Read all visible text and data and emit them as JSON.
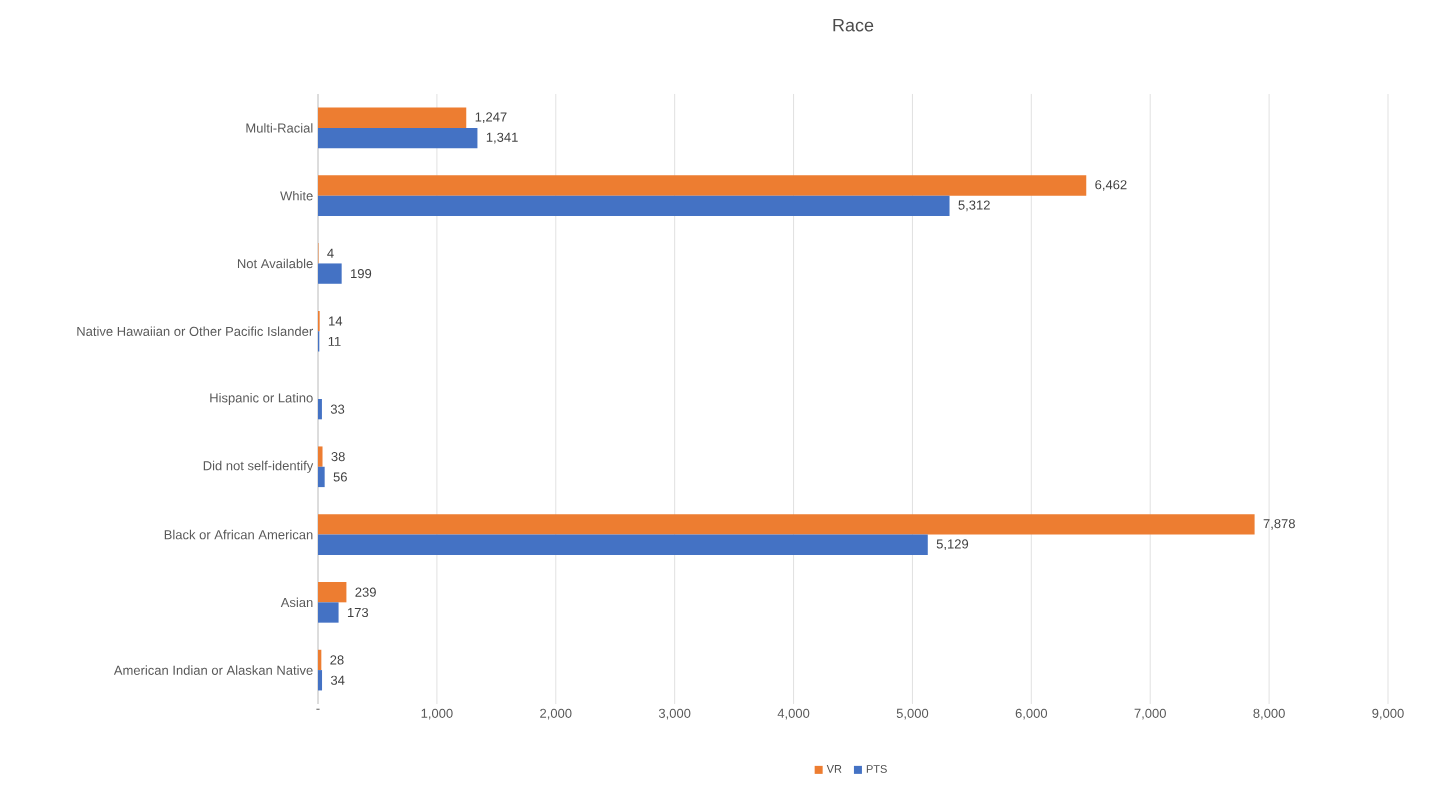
{
  "chart_data": {
    "type": "bar",
    "orientation": "horizontal",
    "title": "Race",
    "categories": [
      "Multi-Racial",
      "White",
      "Not Available",
      "Native Hawaiian or Other Pacific Islander",
      "Hispanic or Latino",
      "Did not self-identify",
      "Black or African American",
      "Asian",
      "American Indian or Alaskan Native"
    ],
    "series": [
      {
        "name": "VR",
        "color": "#ed7d31",
        "values": [
          1247,
          6462,
          4,
          14,
          null,
          38,
          7878,
          239,
          28
        ],
        "value_labels": [
          "1,247",
          "6,462",
          "4",
          "14",
          null,
          "38",
          "7,878",
          "239",
          "28"
        ]
      },
      {
        "name": "PTS",
        "color": "#4472c4",
        "values": [
          1341,
          5312,
          199,
          11,
          33,
          56,
          5129,
          173,
          34
        ],
        "value_labels": [
          "1,341",
          "5,312",
          "199",
          "11",
          "33",
          "56",
          "5,129",
          "173",
          "34"
        ]
      }
    ],
    "xlim": [
      0,
      9000
    ],
    "xticks": [
      {
        "value": 0,
        "label": "-"
      },
      {
        "value": 1000,
        "label": "1,000"
      },
      {
        "value": 2000,
        "label": "2,000"
      },
      {
        "value": 3000,
        "label": "3,000"
      },
      {
        "value": 4000,
        "label": "4,000"
      },
      {
        "value": 5000,
        "label": "5,000"
      },
      {
        "value": 6000,
        "label": "6,000"
      },
      {
        "value": 7000,
        "label": "7,000"
      },
      {
        "value": 8000,
        "label": "8,000"
      },
      {
        "value": 9000,
        "label": "9,000"
      }
    ],
    "grid": "x",
    "legend": "bottom"
  }
}
